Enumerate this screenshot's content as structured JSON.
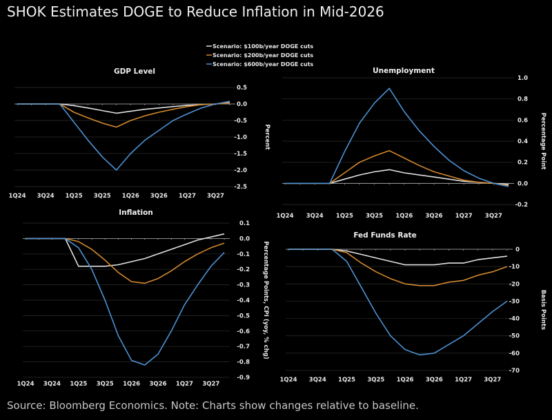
{
  "title": "SHOK Estimates DOGE to Reduce Inflation in Mid-2026",
  "source": "Source: Bloomberg Economics. Note: Charts show changes relative to baseline.",
  "colors": {
    "100b": "#e2e2e2",
    "200b": "#d4892e",
    "600b": "#4d93d6",
    "grid": "#2e2e2e",
    "axis": "#bbbbbb"
  },
  "legend": [
    "Scenario: $100b/year DOGE cuts",
    "Scenario: $200b/year DOGE cuts",
    "Scenario: $600b/year DOGE cuts"
  ],
  "chart_data": [
    {
      "type": "line",
      "title": "GDP Level",
      "ylabel": "Percent",
      "x": [
        "1Q24",
        "2Q24",
        "3Q24",
        "4Q24",
        "1Q25",
        "2Q25",
        "3Q25",
        "4Q25",
        "1Q26",
        "2Q26",
        "3Q26",
        "4Q26",
        "1Q27",
        "2Q27",
        "3Q27",
        "4Q27"
      ],
      "xtick_labels": [
        "1Q24",
        "3Q24",
        "1Q25",
        "3Q25",
        "1Q26",
        "3Q26",
        "1Q27",
        "3Q27"
      ],
      "ylim": [
        -2.5,
        0.5
      ],
      "yticks": [
        "0.5",
        "0.0",
        "-0.5",
        "-1.0",
        "-1.5",
        "-2.0",
        "-2.5"
      ],
      "ytick_values": [
        0.5,
        0,
        -0.5,
        -1,
        -1.5,
        -2,
        -2.5
      ],
      "series": [
        {
          "name": "Scenario: $100b/year DOGE cuts",
          "values": [
            0,
            0,
            0,
            0,
            -0.05,
            -0.12,
            -0.2,
            -0.28,
            -0.22,
            -0.16,
            -0.12,
            -0.08,
            -0.04,
            -0.02,
            0,
            0.05
          ]
        },
        {
          "name": "Scenario: $200b/year DOGE cuts",
          "values": [
            0,
            0,
            0,
            0,
            -0.25,
            -0.42,
            -0.58,
            -0.7,
            -0.5,
            -0.36,
            -0.25,
            -0.16,
            -0.08,
            -0.02,
            0,
            0.03
          ]
        },
        {
          "name": "Scenario: $600b/year DOGE cuts",
          "values": [
            0,
            0,
            0,
            0,
            -0.55,
            -1.1,
            -1.6,
            -2.0,
            -1.5,
            -1.1,
            -0.8,
            -0.5,
            -0.3,
            -0.12,
            0,
            0.08
          ]
        }
      ]
    },
    {
      "type": "line",
      "title": "Unemployment",
      "ylabel": "Percentage Point",
      "x": [
        "1Q24",
        "2Q24",
        "3Q24",
        "4Q24",
        "1Q25",
        "2Q25",
        "3Q25",
        "4Q25",
        "1Q26",
        "2Q26",
        "3Q26",
        "4Q26",
        "1Q27",
        "2Q27",
        "3Q27",
        "4Q27"
      ],
      "xtick_labels": [
        "1Q24",
        "3Q24",
        "1Q25",
        "3Q25",
        "1Q26",
        "3Q26",
        "1Q27",
        "3Q27"
      ],
      "ylim": [
        -0.2,
        1.0
      ],
      "yticks": [
        "1.0",
        "0.8",
        "0.6",
        "0.4",
        "0.2",
        "0.0",
        "-0.2"
      ],
      "ytick_values": [
        1,
        0.8,
        0.6,
        0.4,
        0.2,
        0,
        -0.2
      ],
      "series": [
        {
          "name": "Scenario: $100b/year DOGE cuts",
          "values": [
            0,
            0,
            0,
            0,
            0.04,
            0.08,
            0.11,
            0.13,
            0.1,
            0.08,
            0.06,
            0.04,
            0.02,
            0.01,
            0,
            -0.01
          ]
        },
        {
          "name": "Scenario: $200b/year DOGE cuts",
          "values": [
            0,
            0,
            0,
            0,
            0.1,
            0.2,
            0.26,
            0.31,
            0.24,
            0.17,
            0.11,
            0.07,
            0.03,
            0.01,
            0,
            -0.02
          ]
        },
        {
          "name": "Scenario: $600b/year DOGE cuts",
          "values": [
            0,
            0,
            0,
            0,
            0.3,
            0.57,
            0.76,
            0.9,
            0.68,
            0.5,
            0.35,
            0.22,
            0.12,
            0.05,
            0,
            -0.03
          ]
        }
      ]
    },
    {
      "type": "line",
      "title": "Inflation",
      "ylabel": "Percentage Points, CPI (yoy, % chg)",
      "x": [
        "1Q24",
        "2Q24",
        "3Q24",
        "4Q24",
        "1Q25",
        "2Q25",
        "3Q25",
        "4Q25",
        "1Q26",
        "2Q26",
        "3Q26",
        "4Q26",
        "1Q27",
        "2Q27",
        "3Q27",
        "4Q27"
      ],
      "xtick_labels": [
        "1Q24",
        "3Q24",
        "1Q25",
        "3Q25",
        "1Q26",
        "3Q26",
        "1Q27",
        "3Q27"
      ],
      "ylim": [
        -0.9,
        0.1
      ],
      "yticks": [
        "0.1",
        "0.0",
        "-0.1",
        "-0.2",
        "-0.3",
        "-0.4",
        "-0.5",
        "-0.6",
        "-0.7",
        "-0.8",
        "-0.9"
      ],
      "ytick_values": [
        0.1,
        0,
        -0.1,
        -0.2,
        -0.3,
        -0.4,
        -0.5,
        -0.6,
        -0.7,
        -0.8,
        -0.9
      ],
      "series": [
        {
          "name": "Scenario: $100b/year DOGE cuts",
          "values": [
            0,
            0,
            0,
            0,
            -0.18,
            -0.18,
            -0.18,
            -0.17,
            -0.15,
            -0.13,
            -0.1,
            -0.07,
            -0.04,
            -0.01,
            0.01,
            0.03
          ]
        },
        {
          "name": "Scenario: $200b/year DOGE cuts",
          "values": [
            0,
            0,
            0,
            0,
            -0.02,
            -0.07,
            -0.14,
            -0.22,
            -0.28,
            -0.29,
            -0.26,
            -0.21,
            -0.15,
            -0.1,
            -0.06,
            -0.03
          ]
        },
        {
          "name": "Scenario: $600b/year DOGE cuts",
          "values": [
            0,
            0,
            0,
            0,
            -0.06,
            -0.2,
            -0.4,
            -0.63,
            -0.79,
            -0.82,
            -0.75,
            -0.6,
            -0.43,
            -0.3,
            -0.18,
            -0.09
          ]
        }
      ]
    },
    {
      "type": "line",
      "title": "Fed Funds Rate",
      "ylabel": "Basis Points",
      "x": [
        "1Q24",
        "2Q24",
        "3Q24",
        "4Q24",
        "1Q25",
        "2Q25",
        "3Q25",
        "4Q25",
        "1Q26",
        "2Q26",
        "3Q26",
        "4Q26",
        "1Q27",
        "2Q27",
        "3Q27",
        "4Q27"
      ],
      "xtick_labels": [
        "1Q24",
        "3Q24",
        "1Q25",
        "3Q25",
        "1Q26",
        "3Q26",
        "1Q27",
        "3Q27"
      ],
      "ylim": [
        -70,
        0
      ],
      "yticks": [
        "0",
        "-10",
        "-20",
        "-30",
        "-40",
        "-50",
        "-60",
        "-70"
      ],
      "ytick_values": [
        0,
        -10,
        -20,
        -30,
        -40,
        -50,
        -60,
        -70
      ],
      "series": [
        {
          "name": "Scenario: $100b/year DOGE cuts",
          "values": [
            0,
            0,
            0,
            0,
            -1,
            -3,
            -5,
            -7,
            -9,
            -9,
            -9,
            -8,
            -8,
            -6,
            -5,
            -4
          ]
        },
        {
          "name": "Scenario: $200b/year DOGE cuts",
          "values": [
            0,
            0,
            0,
            0,
            -2,
            -8,
            -13,
            -17,
            -20,
            -21,
            -21,
            -19,
            -18,
            -15,
            -13,
            -10
          ]
        },
        {
          "name": "Scenario: $600b/year DOGE cuts",
          "values": [
            0,
            0,
            0,
            0,
            -7,
            -22,
            -37,
            -50,
            -58,
            -61,
            -60,
            -55,
            -50,
            -43,
            -36,
            -30
          ]
        }
      ]
    }
  ]
}
